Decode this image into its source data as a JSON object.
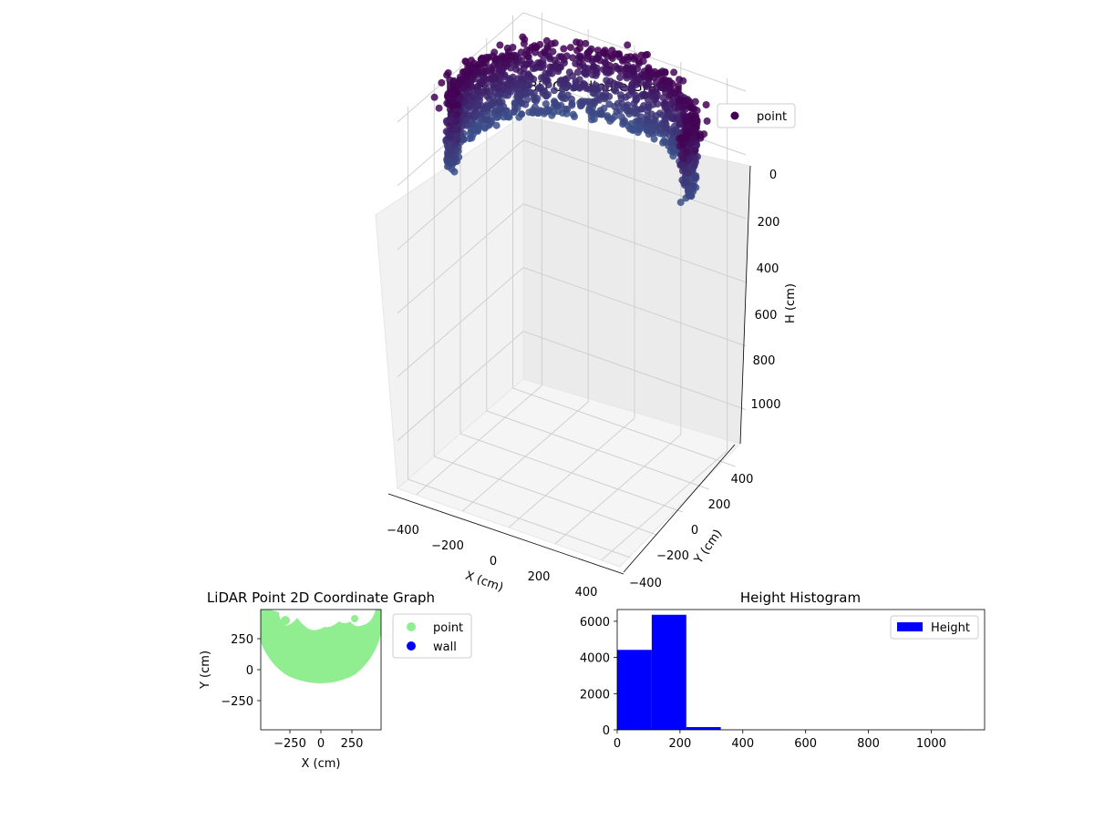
{
  "chart_data": [
    {
      "type": "scatter",
      "projection": "3d",
      "title": "LiDAR Point 3D Coordinate Graph",
      "xlabel": "X (cm)",
      "ylabel": "Y (cm)",
      "zlabel": "H (cm)",
      "xticks": [
        "−400",
        "−200",
        "0",
        "200",
        "400"
      ],
      "yticks": [
        "−400",
        "−200",
        "0",
        "200",
        "400"
      ],
      "zticks": [
        "0",
        "200",
        "400",
        "600",
        "800",
        "1000"
      ],
      "xlim": [
        -480,
        480
      ],
      "ylim": [
        -480,
        480
      ],
      "zlim": [
        -20,
        1150
      ],
      "zinverted": true,
      "grid": true,
      "legend": {
        "position": "top-right",
        "entries": [
          {
            "label": "point",
            "color": "#440154"
          }
        ]
      },
      "colormap": "viridis",
      "points_description": "dense ring of points around radius ~480 cm at heights ~0-200 cm, plus sparse outliers",
      "series": [
        {
          "name": "point",
          "ring_radius": 470,
          "h_range": [
            0,
            220
          ]
        }
      ]
    },
    {
      "type": "scatter",
      "title": "LiDAR Point 2D Coordinate Graph",
      "xlabel": "X (cm)",
      "ylabel": "Y (cm)",
      "xticks": [
        "−250",
        "0",
        "250"
      ],
      "yticks": [
        "−250",
        "0",
        "250"
      ],
      "xlim": [
        -480,
        480
      ],
      "ylim": [
        -480,
        480
      ],
      "legend": {
        "position": "outside-right",
        "entries": [
          {
            "label": "point",
            "color": "#90ee90"
          },
          {
            "label": "wall",
            "color": "#0000ff"
          }
        ]
      },
      "series": [
        {
          "name": "point",
          "color": "#90ee90",
          "shape": "half-disc above y≈-110, radius ~480"
        },
        {
          "name": "wall",
          "color": "#0000ff",
          "values": []
        }
      ]
    },
    {
      "type": "bar",
      "title": "Height Histogram",
      "xlabel": "",
      "ylabel": "",
      "xticks": [
        "0",
        "200",
        "400",
        "600",
        "800",
        "1000"
      ],
      "yticks": [
        "0",
        "2000",
        "4000",
        "6000"
      ],
      "xlim": [
        0,
        1170
      ],
      "ylim": [
        0,
        6650
      ],
      "bin_edges": [
        0,
        110,
        220,
        330,
        440,
        550,
        660,
        770,
        880,
        990,
        1100
      ],
      "values": [
        4420,
        6360,
        150,
        8,
        4,
        3,
        2,
        2,
        1,
        1
      ],
      "color": "#0000ff",
      "legend": {
        "position": "top-right",
        "entries": [
          {
            "label": "Height",
            "color": "#0000ff"
          }
        ]
      }
    }
  ]
}
